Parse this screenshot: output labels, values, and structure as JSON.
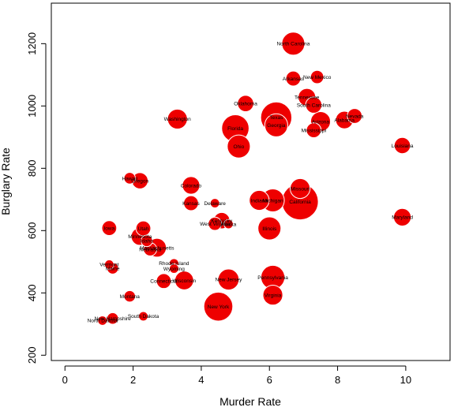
{
  "chart_data": {
    "type": "scatter",
    "title": "",
    "xlabel": "Murder Rate",
    "ylabel": "Burglary Rate",
    "xlim": [
      -0.4,
      11.3
    ],
    "ylim": [
      183,
      1330
    ],
    "x_ticks": [
      0,
      2,
      4,
      6,
      8,
      10
    ],
    "y_ticks": [
      200,
      400,
      600,
      800,
      1000,
      1200
    ],
    "grid": false,
    "legend": "none",
    "bubble_color": "#ee0000",
    "bubble_border_color": "#ffffff",
    "points": [
      {
        "label": "North Carolina",
        "x": 6.7,
        "y": 1200,
        "size": 12
      },
      {
        "label": "Arkansas",
        "x": 6.7,
        "y": 1088,
        "size": 5
      },
      {
        "label": "New Mexico",
        "x": 7.4,
        "y": 1093,
        "size": 4
      },
      {
        "label": "Tennessee",
        "x": 7.1,
        "y": 1028,
        "size": 7
      },
      {
        "label": "South Carolina",
        "x": 7.3,
        "y": 1003,
        "size": 6
      },
      {
        "label": "Oklahoma",
        "x": 5.3,
        "y": 1008,
        "size": 6
      },
      {
        "label": "Nevada",
        "x": 8.5,
        "y": 968,
        "size": 5
      },
      {
        "label": "Alabama",
        "x": 8.2,
        "y": 955,
        "size": 7
      },
      {
        "label": "Arizona",
        "x": 7.5,
        "y": 950,
        "size": 9
      },
      {
        "label": "Texas",
        "x": 6.2,
        "y": 963,
        "size": 22
      },
      {
        "label": "Washington",
        "x": 3.3,
        "y": 958,
        "size": 9
      },
      {
        "label": "Georgia",
        "x": 6.2,
        "y": 938,
        "size": 12
      },
      {
        "label": "Florida",
        "x": 5.0,
        "y": 928,
        "size": 17
      },
      {
        "label": "Mississippi",
        "x": 7.3,
        "y": 922,
        "size": 5
      },
      {
        "label": "Louisiana",
        "x": 9.9,
        "y": 873,
        "size": 6
      },
      {
        "label": "Ohio",
        "x": 5.1,
        "y": 870,
        "size": 12
      },
      {
        "label": "Hawaii",
        "x": 1.9,
        "y": 768,
        "size": 3
      },
      {
        "label": "Oregon",
        "x": 2.2,
        "y": 760,
        "size": 6
      },
      {
        "label": "Colorado",
        "x": 3.7,
        "y": 745,
        "size": 7
      },
      {
        "label": "Missouri",
        "x": 6.9,
        "y": 735,
        "size": 9
      },
      {
        "label": "California",
        "x": 6.9,
        "y": 693,
        "size": 30
      },
      {
        "label": "Indiana",
        "x": 5.7,
        "y": 697,
        "size": 9
      },
      {
        "label": "Michigan",
        "x": 6.1,
        "y": 697,
        "size": 12
      },
      {
        "label": "Kansas",
        "x": 3.7,
        "y": 688,
        "size": 5
      },
      {
        "label": "Delaware",
        "x": 4.4,
        "y": 688,
        "size": 2
      },
      {
        "label": "Maryland",
        "x": 9.9,
        "y": 643,
        "size": 7
      },
      {
        "label": "Kentucky",
        "x": 4.6,
        "y": 632,
        "size": 6
      },
      {
        "label": "West Virginia",
        "x": 4.4,
        "y": 622,
        "size": 4
      },
      {
        "label": "Alaska",
        "x": 4.8,
        "y": 621,
        "size": 2
      },
      {
        "label": "Illinois",
        "x": 6.0,
        "y": 607,
        "size": 12
      },
      {
        "label": "Iowa",
        "x": 1.3,
        "y": 608,
        "size": 5
      },
      {
        "label": "Utah",
        "x": 2.3,
        "y": 607,
        "size": 5
      },
      {
        "label": "Minnesota",
        "x": 2.2,
        "y": 581,
        "size": 7
      },
      {
        "label": "Idaho",
        "x": 2.4,
        "y": 567,
        "size": 3
      },
      {
        "label": "Massachusetts",
        "x": 2.7,
        "y": 545,
        "size": 8
      },
      {
        "label": "Nebraska",
        "x": 2.5,
        "y": 540,
        "size": 4
      },
      {
        "label": "Rhode Island",
        "x": 3.2,
        "y": 495,
        "size": 2
      },
      {
        "label": "Vermont",
        "x": 1.3,
        "y": 491,
        "size": 2
      },
      {
        "label": "Maine",
        "x": 1.4,
        "y": 479,
        "size": 3
      },
      {
        "label": "Wyoming",
        "x": 3.2,
        "y": 478,
        "size": 2
      },
      {
        "label": "New Jersey",
        "x": 4.8,
        "y": 443,
        "size": 10
      },
      {
        "label": "Pennsylvania",
        "x": 6.1,
        "y": 450,
        "size": 13
      },
      {
        "label": "Connecticut",
        "x": 2.9,
        "y": 438,
        "size": 5
      },
      {
        "label": "Wisconsin",
        "x": 3.5,
        "y": 440,
        "size": 8
      },
      {
        "label": "Virginia",
        "x": 6.1,
        "y": 393,
        "size": 9
      },
      {
        "label": "Montana",
        "x": 1.9,
        "y": 389,
        "size": 3
      },
      {
        "label": "New York",
        "x": 4.5,
        "y": 356,
        "size": 19
      },
      {
        "label": "South Dakota",
        "x": 2.3,
        "y": 325,
        "size": 2
      },
      {
        "label": "New Hampshire",
        "x": 1.4,
        "y": 318,
        "size": 3
      },
      {
        "label": "North Dakota",
        "x": 1.1,
        "y": 311,
        "size": 2
      }
    ]
  }
}
